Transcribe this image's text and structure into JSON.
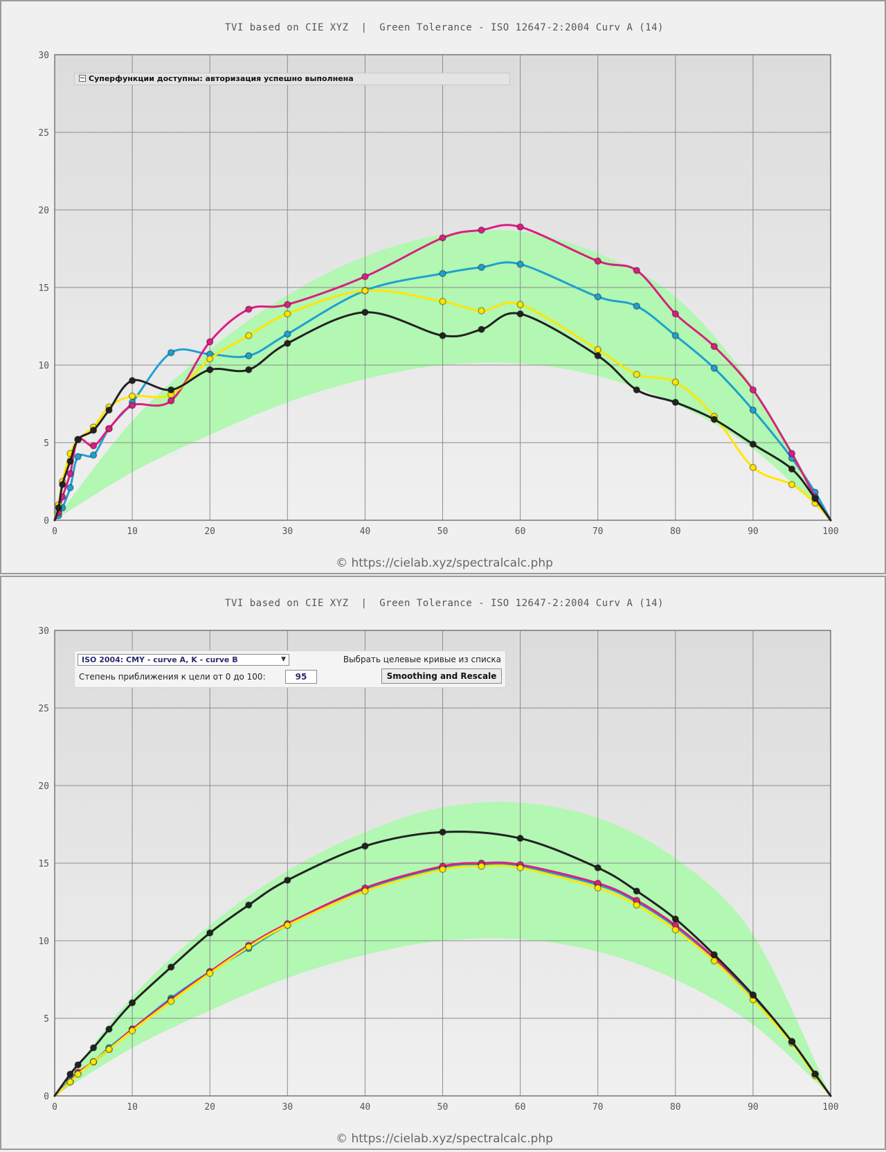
{
  "colors": {
    "cyan": "#1ea0d2",
    "magenta": "#dc1e82",
    "yellow": "#ffe600",
    "black": "#222222",
    "tolerance_band": "#b2f7b2",
    "plot_top": "#dcdcdc",
    "plot_bottom": "#f0f0f0"
  },
  "top_panel": {
    "title": "TVI based on CIE XYZ  |  Green Tolerance - ISO 12647-2:2004 Curv A (14)",
    "legend_text": "Суперфункции доступны: авторизация успешно выполнена",
    "footer": "© https://cielab.xyz/spectralcalc.php"
  },
  "bottom_panel": {
    "title": "TVI based on CIE XYZ  |  Green Tolerance - ISO 12647-2:2004 Curv A (14)",
    "footer": "© https://cielab.xyz/spectralcalc.php",
    "controls": {
      "selected_curve_set": "ISO 2004: CMY - curve A, K - curve B",
      "select_hint": "Выбрать целевые кривые из списка",
      "degree_label": "Степень приближения к цели от 0 до 100:",
      "degree_value": "95",
      "button_label": "Smoothing and Rescale"
    }
  },
  "chart_data": [
    {
      "type": "line",
      "title": "TVI based on CIE XYZ  |  Green Tolerance - ISO 12647-2:2004 Curv A (14)",
      "xlim": [
        0,
        100
      ],
      "ylim": [
        0,
        30
      ],
      "x_ticks": [
        0,
        10,
        20,
        30,
        40,
        50,
        60,
        70,
        80,
        90,
        100
      ],
      "y_ticks": [
        0,
        5,
        10,
        15,
        20,
        25,
        30
      ],
      "grid": true,
      "tolerance_band": {
        "x": [
          0,
          10,
          20,
          30,
          40,
          50,
          60,
          70,
          80,
          90,
          100
        ],
        "lower": [
          0,
          3.1,
          5.5,
          7.6,
          9.1,
          10.0,
          10.1,
          9.3,
          7.5,
          4.6,
          0
        ],
        "upper": [
          0,
          6.4,
          11.0,
          14.5,
          17.0,
          18.4,
          18.6,
          17.2,
          14.4,
          8.6,
          0
        ]
      },
      "series": [
        {
          "color": "cyan",
          "x": [
            0,
            0.5,
            1,
            2,
            3,
            5,
            7,
            10,
            15,
            20,
            25,
            30,
            40,
            50,
            55,
            60,
            70,
            75,
            80,
            85,
            90,
            95,
            98,
            100
          ],
          "y": [
            0,
            0.3,
            0.8,
            2.1,
            4.1,
            4.2,
            5.9,
            7.6,
            10.8,
            10.7,
            10.6,
            12.0,
            14.8,
            15.9,
            16.3,
            16.5,
            14.4,
            13.8,
            11.9,
            9.8,
            7.1,
            4.0,
            1.8,
            0
          ]
        },
        {
          "color": "magenta",
          "x": [
            0,
            0.5,
            1,
            2,
            3,
            5,
            7,
            10,
            15,
            20,
            25,
            30,
            40,
            50,
            55,
            60,
            70,
            75,
            80,
            85,
            90,
            95,
            98,
            100
          ],
          "y": [
            0,
            0.5,
            1.5,
            3.0,
            5.2,
            4.8,
            5.9,
            7.4,
            7.7,
            11.5,
            13.6,
            13.9,
            15.7,
            18.2,
            18.7,
            18.9,
            16.7,
            16.1,
            13.3,
            11.2,
            8.4,
            4.3,
            1.5,
            0
          ]
        },
        {
          "color": "yellow",
          "x": [
            0,
            0.5,
            1,
            2,
            3,
            5,
            7,
            10,
            15,
            20,
            25,
            30,
            40,
            50,
            55,
            60,
            70,
            75,
            80,
            85,
            90,
            95,
            98,
            100
          ],
          "y": [
            0,
            1.0,
            2.5,
            4.3,
            5.2,
            6.0,
            7.3,
            8.0,
            8.1,
            10.4,
            11.9,
            13.3,
            14.8,
            14.1,
            13.5,
            13.9,
            11.0,
            9.4,
            8.9,
            6.7,
            3.4,
            2.3,
            1.1,
            0
          ]
        },
        {
          "color": "black",
          "x": [
            0,
            0.5,
            1,
            2,
            3,
            5,
            7,
            10,
            15,
            20,
            25,
            30,
            40,
            50,
            55,
            60,
            70,
            75,
            80,
            85,
            90,
            95,
            98,
            100
          ],
          "y": [
            0,
            0.8,
            2.3,
            3.8,
            5.2,
            5.8,
            7.1,
            9.0,
            8.4,
            9.7,
            9.7,
            11.4,
            13.4,
            11.9,
            12.3,
            13.3,
            10.6,
            8.4,
            7.6,
            6.5,
            4.9,
            3.3,
            1.4,
            0
          ]
        }
      ]
    },
    {
      "type": "line",
      "title": "TVI based on CIE XYZ  |  Green Tolerance - ISO 12647-2:2004 Curv A (14)",
      "xlim": [
        0,
        100
      ],
      "ylim": [
        0,
        30
      ],
      "x_ticks": [
        0,
        10,
        20,
        30,
        40,
        50,
        60,
        70,
        80,
        90,
        100
      ],
      "y_ticks": [
        0,
        5,
        10,
        15,
        20,
        25,
        30
      ],
      "grid": true,
      "tolerance_band": {
        "x": [
          0,
          10,
          20,
          30,
          40,
          50,
          60,
          70,
          80,
          90,
          100
        ],
        "lower": [
          0,
          3.1,
          5.5,
          7.6,
          9.1,
          10.0,
          10.1,
          9.3,
          7.5,
          4.6,
          0
        ],
        "upper": [
          0,
          6.4,
          11.0,
          14.5,
          17.0,
          18.6,
          18.9,
          17.9,
          15.3,
          10.4,
          0
        ]
      },
      "series": [
        {
          "color": "cyan",
          "x": [
            0,
            2,
            3,
            5,
            7,
            10,
            15,
            20,
            25,
            30,
            40,
            50,
            55,
            60,
            70,
            75,
            80,
            85,
            90,
            95,
            98,
            100
          ],
          "y": [
            0,
            1.0,
            1.5,
            2.2,
            3.1,
            4.3,
            6.3,
            8.0,
            9.5,
            11.0,
            13.3,
            14.7,
            14.9,
            14.8,
            13.6,
            12.5,
            10.9,
            8.8,
            6.4,
            3.5,
            1.4,
            0
          ]
        },
        {
          "color": "magenta",
          "x": [
            0,
            2,
            3,
            5,
            7,
            10,
            15,
            20,
            25,
            30,
            40,
            50,
            55,
            60,
            70,
            75,
            80,
            85,
            90,
            95,
            98,
            100
          ],
          "y": [
            0,
            0.9,
            1.5,
            2.2,
            3.0,
            4.3,
            6.2,
            8.0,
            9.7,
            11.1,
            13.4,
            14.8,
            15.0,
            14.9,
            13.7,
            12.6,
            11.0,
            8.9,
            6.5,
            3.5,
            1.4,
            0
          ]
        },
        {
          "color": "yellow",
          "x": [
            0,
            2,
            3,
            5,
            7,
            10,
            15,
            20,
            25,
            30,
            40,
            50,
            55,
            60,
            70,
            75,
            80,
            85,
            90,
            95,
            98,
            100
          ],
          "y": [
            0,
            0.9,
            1.4,
            2.2,
            3.0,
            4.2,
            6.1,
            7.9,
            9.6,
            11.0,
            13.2,
            14.6,
            14.8,
            14.7,
            13.4,
            12.3,
            10.7,
            8.7,
            6.2,
            3.4,
            1.3,
            0
          ]
        },
        {
          "color": "black",
          "x": [
            0,
            2,
            3,
            5,
            7,
            10,
            15,
            20,
            25,
            30,
            40,
            50,
            60,
            70,
            75,
            80,
            85,
            90,
            95,
            98,
            100
          ],
          "y": [
            0,
            1.4,
            2.0,
            3.1,
            4.3,
            6.0,
            8.3,
            10.5,
            12.3,
            13.9,
            16.1,
            17.0,
            16.6,
            14.7,
            13.2,
            11.4,
            9.1,
            6.5,
            3.5,
            1.4,
            0
          ]
        }
      ]
    }
  ]
}
